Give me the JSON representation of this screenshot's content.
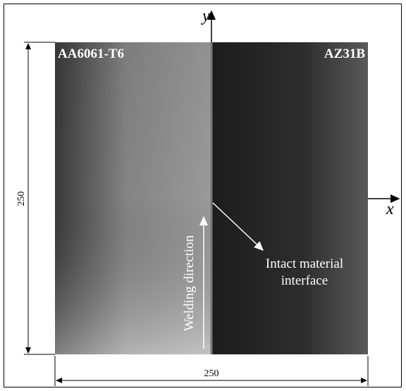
{
  "materials": {
    "left": "AA6061-T6",
    "right": "AZ31B"
  },
  "axes": {
    "x": "x",
    "y": "y"
  },
  "dimensions": {
    "height": "250",
    "width": "250"
  },
  "annotations": {
    "welding": "Welding direction",
    "interface": [
      "Intact material",
      "interface"
    ]
  }
}
